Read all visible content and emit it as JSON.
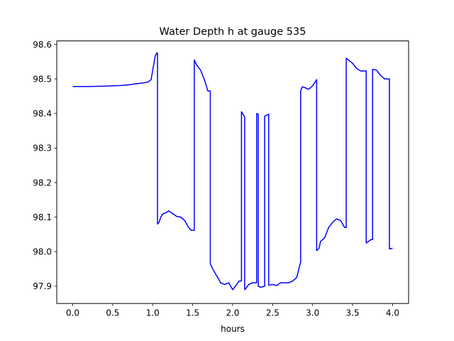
{
  "chart_data": {
    "type": "line",
    "title": "Water Depth h at gauge 535",
    "xlabel": "hours",
    "ylabel": "",
    "xlim": [
      -0.2,
      4.2
    ],
    "ylim": [
      97.85,
      98.61
    ],
    "xticks": [
      0.0,
      0.5,
      1.0,
      1.5,
      2.0,
      2.5,
      3.0,
      3.5,
      4.0
    ],
    "xtick_labels": [
      "0.0",
      "0.5",
      "1.0",
      "1.5",
      "2.0",
      "2.5",
      "3.0",
      "3.5",
      "4.0"
    ],
    "yticks": [
      97.9,
      98.0,
      98.1,
      98.2,
      98.3,
      98.4,
      98.5,
      98.6
    ],
    "ytick_labels": [
      "97.9",
      "98.0",
      "98.1",
      "98.2",
      "98.3",
      "98.4",
      "98.5",
      "98.6"
    ],
    "grid": false,
    "series": [
      {
        "color": "#0000ff",
        "x": [
          0.0,
          0.2,
          0.4,
          0.6,
          0.7,
          0.8,
          0.9,
          0.95,
          0.98,
          1.0,
          1.03,
          1.05,
          1.06,
          1.06,
          1.08,
          1.1,
          1.13,
          1.16,
          1.2,
          1.25,
          1.3,
          1.35,
          1.4,
          1.45,
          1.48,
          1.52,
          1.52,
          1.55,
          1.6,
          1.65,
          1.69,
          1.72,
          1.72,
          1.75,
          1.8,
          1.85,
          1.9,
          1.95,
          2.0,
          2.05,
          2.08,
          2.1,
          2.11,
          2.11,
          2.15,
          2.15,
          2.17,
          2.2,
          2.25,
          2.3,
          2.3,
          2.32,
          2.32,
          2.35,
          2.4,
          2.4,
          2.45,
          2.45,
          2.5,
          2.55,
          2.6,
          2.7,
          2.75,
          2.8,
          2.85,
          2.85,
          2.87,
          2.9,
          2.95,
          3.0,
          3.05,
          3.05,
          3.08,
          3.1,
          3.15,
          3.2,
          3.25,
          3.3,
          3.35,
          3.4,
          3.42,
          3.42,
          3.5,
          3.55,
          3.6,
          3.67,
          3.67,
          3.73,
          3.75,
          3.75,
          3.8,
          3.85,
          3.9,
          3.95,
          3.96,
          3.96,
          4.0
        ],
        "y": [
          98.478,
          98.478,
          98.479,
          98.481,
          98.483,
          98.486,
          98.489,
          98.492,
          98.498,
          98.525,
          98.565,
          98.575,
          98.575,
          98.08,
          98.085,
          98.1,
          98.11,
          98.112,
          98.118,
          98.11,
          98.102,
          98.1,
          98.09,
          98.07,
          98.062,
          98.062,
          98.555,
          98.54,
          98.525,
          98.495,
          98.465,
          98.465,
          97.965,
          97.95,
          97.93,
          97.91,
          97.905,
          97.91,
          97.89,
          97.905,
          97.915,
          97.915,
          97.915,
          98.405,
          98.39,
          97.89,
          97.895,
          97.905,
          97.91,
          97.91,
          98.4,
          98.398,
          97.9,
          97.897,
          97.9,
          98.392,
          98.398,
          97.903,
          97.905,
          97.902,
          97.91,
          97.91,
          97.915,
          97.925,
          97.97,
          98.465,
          98.477,
          98.475,
          98.47,
          98.48,
          98.498,
          98.003,
          98.01,
          98.03,
          98.04,
          98.07,
          98.085,
          98.095,
          98.09,
          98.07,
          98.07,
          98.56,
          98.545,
          98.53,
          98.523,
          98.523,
          98.025,
          98.035,
          98.035,
          98.528,
          98.525,
          98.51,
          98.5,
          98.5,
          98.5,
          98.008,
          98.01
        ]
      }
    ]
  }
}
